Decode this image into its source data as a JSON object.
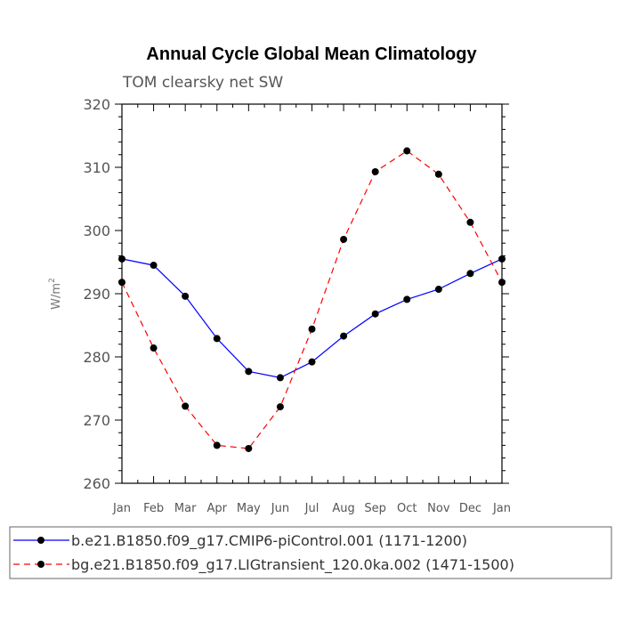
{
  "chart_data": {
    "type": "line",
    "title": "Annual Cycle Global Mean Climatology",
    "subtitle": "TOM clearsky net SW",
    "ylabel": "W/m",
    "ylabel_sup": "2",
    "xlabel": "",
    "ylim": [
      260,
      320
    ],
    "yticks": [
      260,
      270,
      280,
      290,
      300,
      310,
      320
    ],
    "categories": [
      "Jan",
      "Feb",
      "Mar",
      "Apr",
      "May",
      "Jun",
      "Jul",
      "Aug",
      "Sep",
      "Oct",
      "Nov",
      "Dec",
      "Jan"
    ],
    "series": [
      {
        "name": "b.e21.B1850.f09_g17.CMIP6-piControl.001 (1171-1200)",
        "color": "#0000ff",
        "style": "solid",
        "values": [
          295.5,
          294.5,
          289.6,
          282.9,
          277.7,
          276.7,
          279.2,
          283.3,
          286.8,
          289.1,
          290.7,
          293.2,
          295.5
        ]
      },
      {
        "name": "bg.e21.B1850.f09_g17.LIGtransient_120.0ka.002 (1471-1500)",
        "color": "#ff0000",
        "style": "dashed",
        "values": [
          291.8,
          281.4,
          272.2,
          266.0,
          265.5,
          272.1,
          284.4,
          298.6,
          309.3,
          312.6,
          308.9,
          301.3,
          291.8
        ]
      }
    ],
    "grid": false,
    "legend_position": "bottom"
  }
}
